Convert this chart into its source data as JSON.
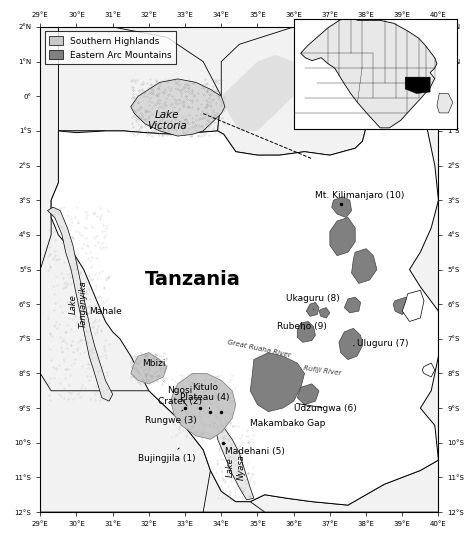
{
  "title": "Tanzania",
  "lon_min": 29,
  "lon_max": 40,
  "lat_min": -12,
  "lat_max": 2,
  "lon_ticks": [
    29,
    30,
    31,
    32,
    33,
    34,
    35,
    36,
    37,
    38,
    39,
    40
  ],
  "lat_ticks": [
    2,
    1,
    0,
    -1,
    -2,
    -3,
    -4,
    -5,
    -6,
    -7,
    -8,
    -9,
    -10,
    -11,
    -12
  ],
  "ocean_color": "#ffffff",
  "land_neighbor_color": "#ffffff",
  "tanzania_color": "#ffffff",
  "southern_highlands_color": "#c8c8c8",
  "eastern_arc_color": "#808080",
  "lake_victoria_stipple": "#bbbbbb",
  "legend_southern": "Southern Highlands",
  "legend_eastern": "Eastern Arc Mountains"
}
